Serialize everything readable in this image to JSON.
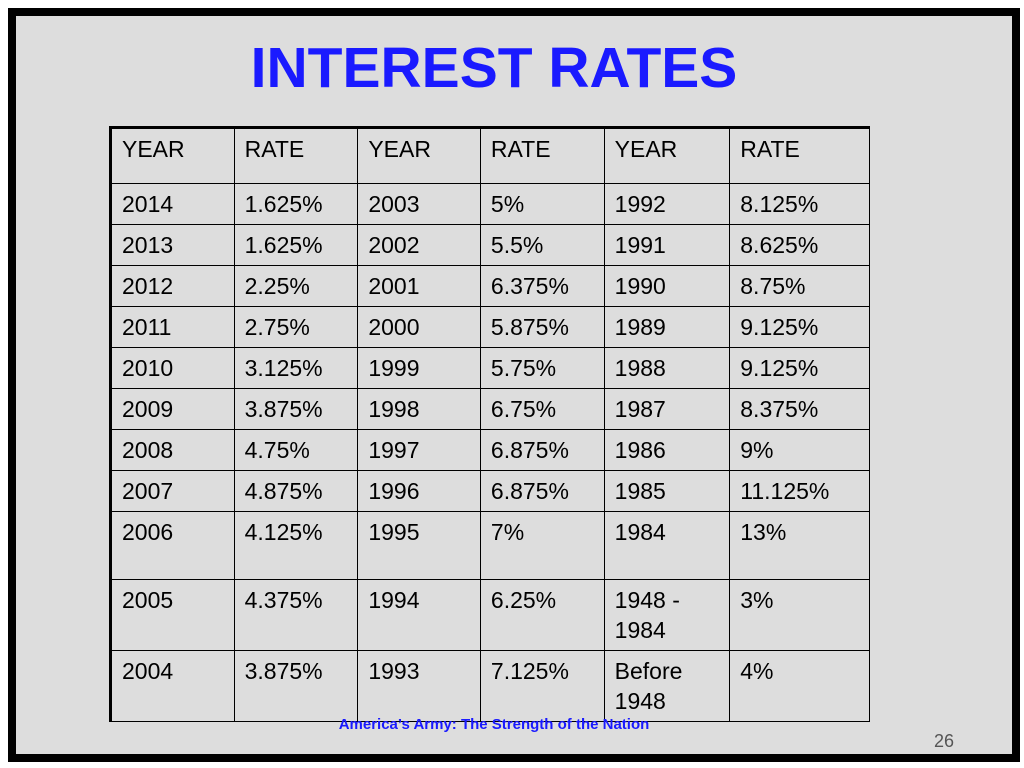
{
  "slide": {
    "title": "INTEREST RATES",
    "footer": "America’s Army:  The Strength of the Nation",
    "page_number": "26"
  },
  "table": {
    "headers": [
      "YEAR",
      "RATE",
      "YEAR",
      "RATE",
      "YEAR",
      "RATE"
    ],
    "rows": [
      [
        "2014",
        "1.625%",
        "2003",
        "5%",
        "1992",
        "8.125%"
      ],
      [
        "2013",
        "1.625%",
        "2002",
        "5.5%",
        "1991",
        "8.625%"
      ],
      [
        "2012",
        "2.25%",
        "2001",
        "6.375%",
        "1990",
        "8.75%"
      ],
      [
        "2011",
        "2.75%",
        "2000",
        "5.875%",
        "1989",
        "9.125%"
      ],
      [
        "2010",
        "3.125%",
        "1999",
        "5.75%",
        "1988",
        "9.125%"
      ],
      [
        "2009",
        "3.875%",
        "1998",
        "6.75%",
        "1987",
        "8.375%"
      ],
      [
        "2008",
        "4.75%",
        "1997",
        "6.875%",
        "1986",
        "9%"
      ],
      [
        "2007",
        "4.875%",
        "1996",
        "6.875%",
        "1985",
        "11.125%"
      ],
      [
        "2006",
        "4.125%",
        "1995",
        "7%",
        "1984",
        "13%"
      ],
      [
        "2005",
        "4.375%",
        "1994",
        "6.25%",
        "1948 - 1984",
        "3%"
      ],
      [
        "2004",
        "3.875%",
        "1993",
        "7.125%",
        "Before 1948",
        "4%"
      ]
    ]
  },
  "colors": {
    "title": "#1a1aff",
    "background": "#dddddd",
    "frame": "#000000"
  }
}
